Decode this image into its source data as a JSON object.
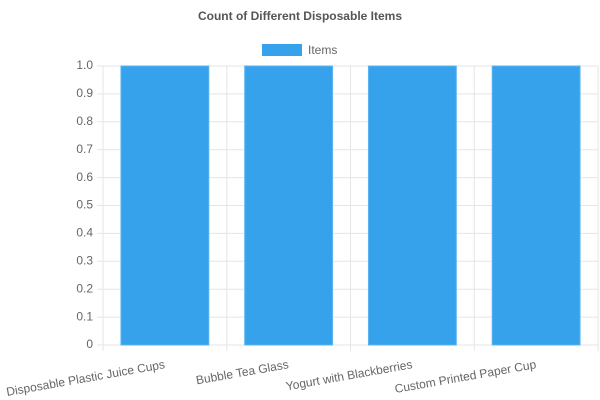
{
  "chart_data": {
    "type": "bar",
    "title": "Count of Different Disposable Items",
    "categories": [
      "Disposable Plastic Juice Cups",
      "Bubble Tea Glass",
      "Yogurt with Blackberries",
      "Custom Printed Paper Cup"
    ],
    "series": [
      {
        "name": "Items",
        "color": "#36a2eb",
        "values": [
          1,
          1,
          1,
          1
        ]
      }
    ],
    "ylim": [
      0,
      1
    ],
    "yticks": [
      0,
      0.1,
      0.2,
      0.3,
      0.4,
      0.5,
      0.6,
      0.7,
      0.8,
      0.9,
      {
        "value": 1,
        "label": "1.0"
      }
    ],
    "grid": true,
    "legend": "top"
  }
}
